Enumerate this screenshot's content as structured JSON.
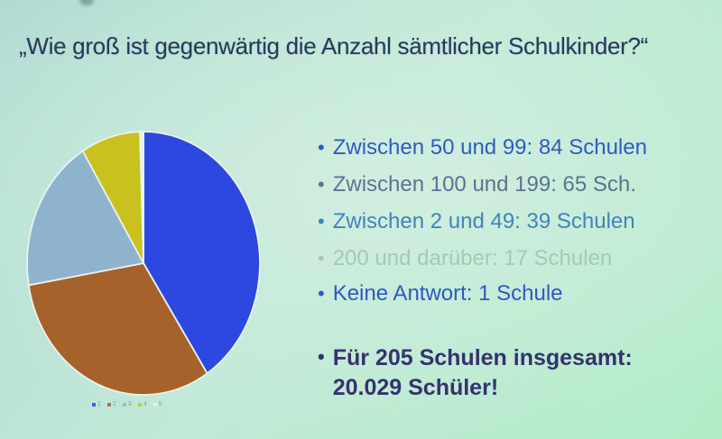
{
  "slide": {
    "title": "„Wie groß ist gegenwärtig die Anzahl sämtlicher Schulkinder?“",
    "bullets": [
      {
        "label": "Zwischen 50 und 99: 84 Schulen",
        "color": "#2e5cc2"
      },
      {
        "label": "Zwischen 100 und 199: 65 Sch.",
        "color": "#5b7390"
      },
      {
        "label": "Zwischen 2 und 49: 39 Schulen",
        "color": "#4283bb"
      },
      {
        "label": "200 und darüber: 17 Schulen",
        "color": "#a4cab3"
      },
      {
        "label": "Keine Antwort: 1 Schule",
        "color": "#2c59c4"
      }
    ],
    "summary": {
      "line1": "Für 205 Schulen insgesamt:",
      "line2": "20.029 Schüler!",
      "color": "#37316f"
    }
  },
  "chart_data": {
    "type": "pie",
    "title": "",
    "categories": [
      "Zwischen 50 und 99",
      "Zwischen 100 und 199",
      "Zwischen 2 und 49",
      "200 und darüber",
      "Keine Antwort"
    ],
    "values": [
      84,
      65,
      39,
      17,
      1
    ],
    "unit": "Schulen",
    "colors": [
      "#2c48e0",
      "#a5622b",
      "#8fb3cf",
      "#c9c11d",
      "#e9efe8"
    ],
    "slice_gap_color": "#e9f3ec",
    "legend_labels": [
      "1",
      "2",
      "3",
      "4",
      "5"
    ],
    "legend_position": "bottom",
    "start_angle_deg": 0,
    "clockwise": true
  }
}
